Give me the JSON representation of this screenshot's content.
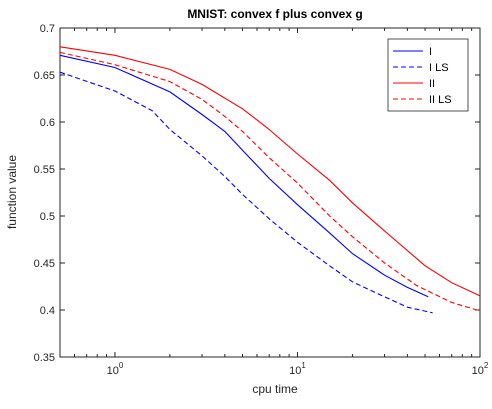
{
  "chart_data": {
    "type": "line",
    "title": "MNIST: convex f plus convex g",
    "xlabel": "cpu time",
    "ylabel": "function value",
    "xscale": "log",
    "xlim": [
      0.5,
      100
    ],
    "ylim": [
      0.35,
      0.7
    ],
    "grid": false,
    "legend_position": "top-right",
    "y_ticks": [
      0.35,
      0.4,
      0.45,
      0.5,
      0.55,
      0.6,
      0.65,
      0.7
    ],
    "y_tick_labels": [
      "0.35",
      "0.4",
      "0.45",
      "0.5",
      "0.55",
      "0.6",
      "0.65",
      "0.7"
    ],
    "x_ticks": [
      {
        "value": 1,
        "base": "10",
        "exp": "0"
      },
      {
        "value": 10,
        "base": "10",
        "exp": "1"
      },
      {
        "value": 100,
        "base": "10",
        "exp": "2"
      }
    ],
    "series": [
      {
        "name": "I",
        "color": "#0000ff",
        "dash": "solid",
        "points": [
          [
            0.5,
            0.671
          ],
          [
            1,
            0.658
          ],
          [
            2,
            0.632
          ],
          [
            3,
            0.608
          ],
          [
            4,
            0.59
          ],
          [
            5,
            0.57
          ],
          [
            7,
            0.54
          ],
          [
            10,
            0.512
          ],
          [
            15,
            0.482
          ],
          [
            20,
            0.46
          ],
          [
            30,
            0.437
          ],
          [
            40,
            0.424
          ],
          [
            52,
            0.414
          ]
        ]
      },
      {
        "name": "I LS",
        "color": "#0000ff",
        "dash": "dashed",
        "points": [
          [
            0.5,
            0.653
          ],
          [
            1,
            0.633
          ],
          [
            1.6,
            0.612
          ],
          [
            2,
            0.592
          ],
          [
            3,
            0.564
          ],
          [
            4,
            0.542
          ],
          [
            5,
            0.523
          ],
          [
            7,
            0.497
          ],
          [
            10,
            0.472
          ],
          [
            15,
            0.447
          ],
          [
            20,
            0.43
          ],
          [
            30,
            0.414
          ],
          [
            40,
            0.403
          ],
          [
            55,
            0.397
          ]
        ]
      },
      {
        "name": "II",
        "color": "#ff0000",
        "dash": "solid",
        "points": [
          [
            0.5,
            0.68
          ],
          [
            1,
            0.671
          ],
          [
            2,
            0.656
          ],
          [
            3,
            0.64
          ],
          [
            5,
            0.614
          ],
          [
            7,
            0.592
          ],
          [
            10,
            0.566
          ],
          [
            15,
            0.538
          ],
          [
            20,
            0.514
          ],
          [
            30,
            0.484
          ],
          [
            50,
            0.447
          ],
          [
            70,
            0.429
          ],
          [
            100,
            0.415
          ]
        ]
      },
      {
        "name": "II LS",
        "color": "#ff0000",
        "dash": "dashed",
        "points": [
          [
            0.5,
            0.674
          ],
          [
            1,
            0.661
          ],
          [
            2,
            0.643
          ],
          [
            3,
            0.624
          ],
          [
            4,
            0.606
          ],
          [
            5,
            0.59
          ],
          [
            7,
            0.562
          ],
          [
            10,
            0.535
          ],
          [
            15,
            0.5
          ],
          [
            20,
            0.478
          ],
          [
            30,
            0.45
          ],
          [
            45,
            0.426
          ],
          [
            70,
            0.408
          ],
          [
            100,
            0.399
          ]
        ]
      }
    ]
  }
}
